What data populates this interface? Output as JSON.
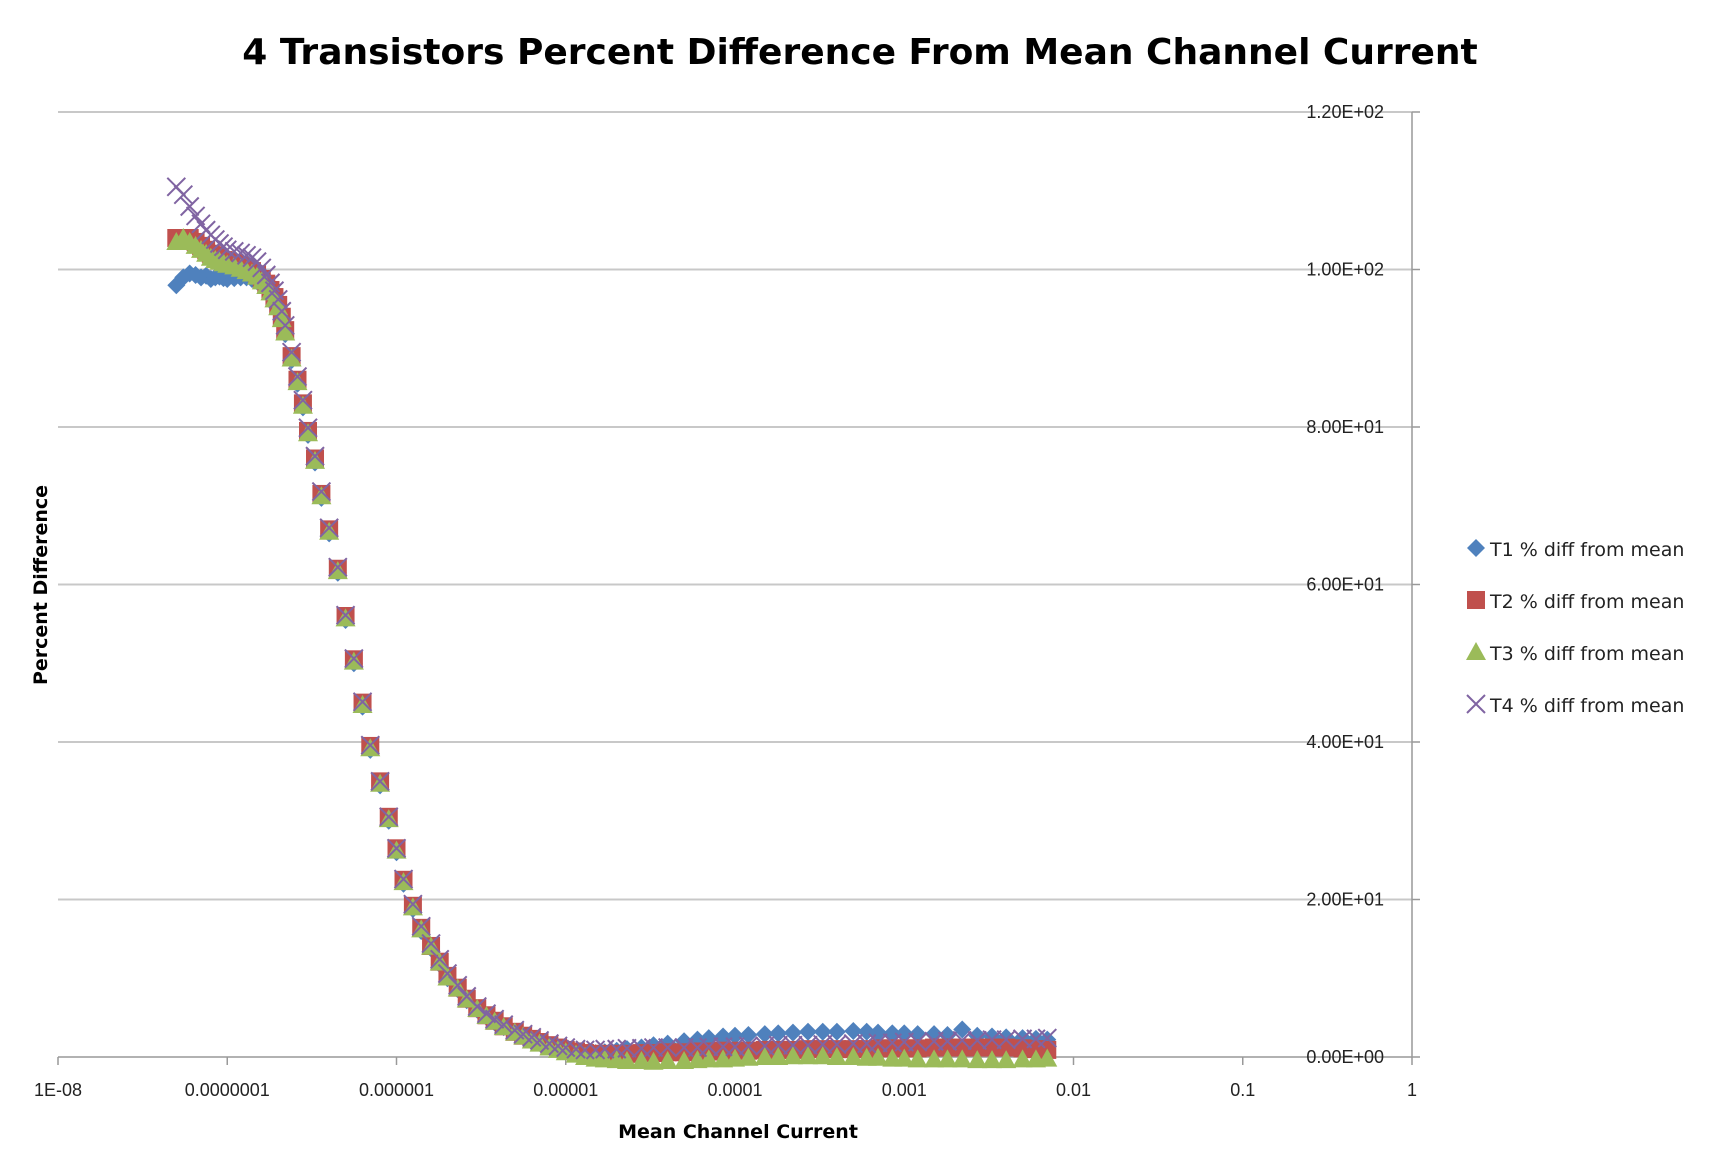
{
  "chart_data": {
    "type": "scatter",
    "title": "4 Transistors Percent Difference From Mean Channel Current",
    "xlabel": "Mean Channel Current",
    "ylabel": "Percent Difference",
    "x_scale": "log",
    "xlim": [
      1e-08,
      1
    ],
    "ylim": [
      0,
      120
    ],
    "x_ticks": [
      "1E-08",
      "0.0000001",
      "0.000001",
      "0.00001",
      "0.0001",
      "0.001",
      "0.01",
      "0.1",
      "1"
    ],
    "y_ticks": [
      "0.00E+00",
      "2.00E+01",
      "4.00E+01",
      "6.00E+01",
      "8.00E+01",
      "1.00E+02",
      "1.20E+02"
    ],
    "y_axis_side": "right",
    "grid": "horizontal",
    "legend_position": "right",
    "x_shared": [
      5e-08,
      5.5e-08,
      6e-08,
      6.5e-08,
      7e-08,
      7.5e-08,
      8e-08,
      8.5e-08,
      9e-08,
      9.5e-08,
      1e-07,
      1.1e-07,
      1.2e-07,
      1.3e-07,
      1.4e-07,
      1.5e-07,
      1.6e-07,
      1.7e-07,
      1.8e-07,
      1.9e-07,
      2e-07,
      2.1e-07,
      2.2e-07,
      2.4e-07,
      2.6e-07,
      2.8e-07,
      3e-07,
      3.3e-07,
      3.6e-07,
      4e-07,
      4.5e-07,
      5e-07,
      5.6e-07,
      6.3e-07,
      7e-07,
      8e-07,
      9e-07,
      1e-06,
      1.1e-06,
      1.25e-06,
      1.4e-06,
      1.6e-06,
      1.8e-06,
      2e-06,
      2.3e-06,
      2.6e-06,
      3e-06,
      3.4e-06,
      3.8e-06,
      4.3e-06,
      5e-06,
      5.6e-06,
      6.3e-06,
      7e-06,
      8e-06,
      9e-06,
      1e-05,
      1.15e-05,
      1.3e-05,
      1.5e-05,
      1.7e-05,
      2e-05
    ],
    "x_tail": [
      2.3e-05,
      2.8e-05,
      3.3e-05,
      4e-05,
      5e-05,
      6e-05,
      7e-05,
      8.5e-05,
      0.0001,
      0.00012,
      0.00015,
      0.00018,
      0.00022,
      0.00027,
      0.00033,
      0.0004,
      0.0005,
      0.0006,
      0.0007,
      0.00085,
      0.001,
      0.0012,
      0.0015,
      0.0018,
      0.0022,
      0.0027,
      0.0033,
      0.004,
      0.005,
      0.006,
      0.007
    ],
    "series": [
      {
        "name": "T1 % diff from mean",
        "color": "#4f81bd",
        "marker": "diamond",
        "y_shared": [
          98,
          99,
          99.5,
          99.3,
          99,
          99.2,
          98.8,
          99,
          99.1,
          98.9,
          98.8,
          98.9,
          99,
          99,
          98.8,
          98.5,
          98,
          97.5,
          96.8,
          96,
          95,
          93.5,
          91.8,
          88.5,
          85.5,
          82.5,
          79,
          75.5,
          71,
          66.5,
          61.5,
          55.5,
          50,
          44.5,
          39,
          34.5,
          30,
          26,
          22,
          18.8,
          16,
          13.8,
          11.8,
          10,
          8.6,
          7.2,
          6,
          5.1,
          4.4,
          3.8,
          3.1,
          2.6,
          2.2,
          1.8,
          1.4,
          1.1,
          0.8,
          0.6,
          0.5,
          0.5,
          0.6,
          0.8
        ],
        "y_tail": [
          1,
          1.2,
          1.5,
          1.7,
          2,
          2.2,
          2.4,
          2.6,
          2.7,
          2.8,
          2.9,
          3,
          3.1,
          3.2,
          3.2,
          3.2,
          3.3,
          3.2,
          3.1,
          3,
          3,
          2.9,
          2.9,
          2.8,
          3.5,
          2.7,
          2.6,
          2.5,
          2.4,
          2.3,
          2.2
        ]
      },
      {
        "name": "T2 % diff from mean",
        "color": "#c0504d",
        "marker": "square",
        "y_shared": [
          104,
          104,
          104,
          103.5,
          103,
          102.5,
          102,
          101.8,
          101.5,
          101.2,
          101,
          100.8,
          100.5,
          100.2,
          99.8,
          99.4,
          98.8,
          98.2,
          97.4,
          96.5,
          95.5,
          94,
          92.3,
          89,
          86,
          83,
          79.5,
          76,
          71.5,
          67,
          62,
          56,
          50.5,
          45,
          39.5,
          35,
          30.5,
          26.5,
          22.5,
          19.2,
          16.4,
          14.1,
          12.1,
          10.3,
          8.8,
          7.4,
          6.2,
          5.3,
          4.6,
          3.9,
          3.2,
          2.7,
          2.3,
          1.9,
          1.5,
          1.2,
          0.9,
          0.7,
          0.5,
          0.4,
          0.4,
          0.4
        ],
        "y_tail": [
          0.4,
          0.5,
          0.5,
          0.6,
          0.6,
          0.7,
          0.7,
          0.8,
          0.8,
          0.8,
          0.9,
          0.9,
          0.9,
          1,
          1,
          1,
          1,
          1,
          1.1,
          1.1,
          1.1,
          1.1,
          1.2,
          1.2,
          1.2,
          1.2,
          1.2,
          1.2,
          1.1,
          1,
          0.9
        ]
      },
      {
        "name": "T3 % diff from mean",
        "color": "#9bbb59",
        "marker": "triangle",
        "y_shared": [
          103.5,
          104,
          103.5,
          103,
          102.5,
          102,
          101.5,
          101.2,
          101,
          100.8,
          100.6,
          100.4,
          100.1,
          99.8,
          99.5,
          99.1,
          98.5,
          97.9,
          97.1,
          96.2,
          95.2,
          93.7,
          92,
          88.7,
          85.7,
          82.7,
          79.2,
          75.7,
          71.2,
          66.7,
          61.7,
          55.7,
          50.2,
          44.7,
          39.2,
          34.7,
          30.2,
          26.2,
          22.2,
          19,
          16.2,
          14,
          12,
          10.1,
          8.7,
          7.3,
          6.1,
          5.2,
          4.5,
          3.8,
          3.1,
          2.6,
          2.1,
          1.7,
          1.2,
          0.9,
          0.6,
          0.3,
          0,
          -0.2,
          -0.3,
          -0.4
        ],
        "y_tail": [
          -0.5,
          -0.5,
          -0.6,
          -0.5,
          -0.5,
          -0.4,
          -0.3,
          -0.3,
          -0.2,
          -0.1,
          0,
          0,
          0.1,
          0.1,
          0.1,
          0,
          0,
          -0.1,
          -0.1,
          -0.2,
          -0.2,
          -0.3,
          -0.3,
          -0.3,
          -0.3,
          -0.4,
          -0.4,
          -0.4,
          -0.3,
          -0.3,
          -0.2
        ]
      },
      {
        "name": "T4 % diff from mean",
        "color": "#8064a2",
        "marker": "x",
        "y_shared": [
          110.5,
          109.5,
          108,
          106.8,
          105.8,
          105,
          104.4,
          103.8,
          103.3,
          102.9,
          102.5,
          102.3,
          102.1,
          101.8,
          101.5,
          101,
          100.2,
          99.3,
          98.3,
          97.3,
          96.2,
          94.7,
          92.9,
          89.5,
          86.4,
          83.4,
          79.9,
          76.3,
          71.8,
          67.2,
          62.2,
          56.1,
          50.6,
          45.1,
          39.6,
          35,
          30.5,
          26.5,
          22.6,
          19.4,
          16.6,
          14.4,
          12.4,
          10.6,
          9.1,
          7.7,
          6.4,
          5.5,
          4.8,
          4.1,
          3.4,
          2.9,
          2.5,
          2.1,
          1.7,
          1.4,
          1.2,
          1,
          0.9,
          0.9,
          1,
          1
        ],
        "y_tail": [
          1.1,
          1.1,
          1.2,
          1.2,
          1.2,
          1.2,
          1.3,
          1.3,
          1.3,
          1.4,
          1.4,
          1.5,
          1.5,
          1.5,
          1.6,
          1.6,
          1.7,
          1.7,
          1.8,
          1.8,
          1.9,
          1.9,
          2,
          2,
          2.1,
          2.1,
          2.2,
          2.2,
          2.3,
          2.3,
          2.4
        ]
      }
    ]
  }
}
